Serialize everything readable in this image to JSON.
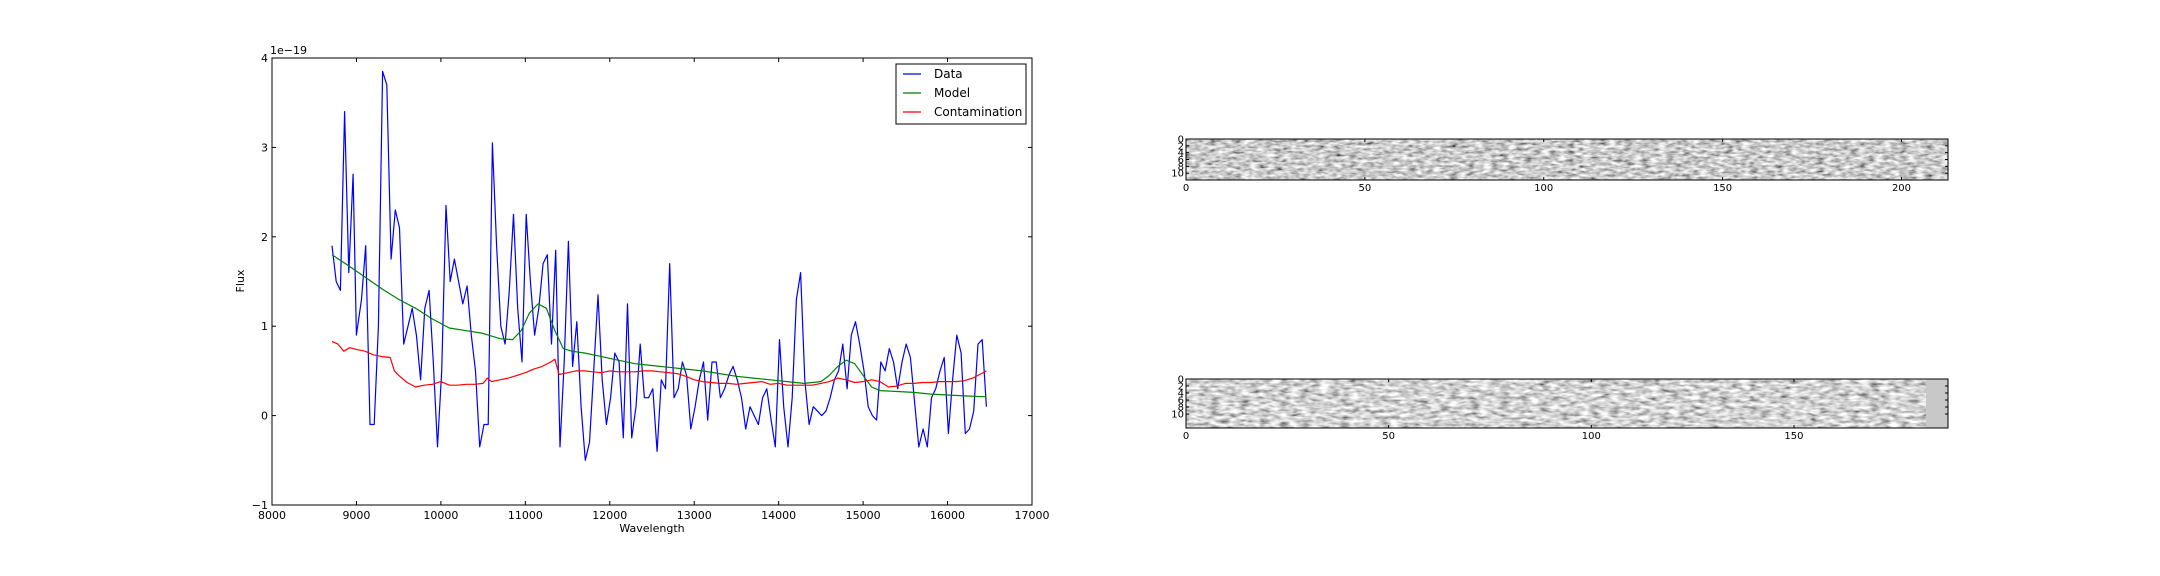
{
  "chart_data": [
    {
      "type": "line",
      "xlabel": "Wavelength",
      "ylabel": "Flux",
      "offset_text": "1e−19",
      "xlim": [
        8000,
        17000
      ],
      "ylim": [
        -1,
        4
      ],
      "xticks": [
        8000,
        9000,
        10000,
        11000,
        12000,
        13000,
        14000,
        15000,
        16000,
        17000
      ],
      "yticks": [
        -1,
        0,
        1,
        2,
        3,
        4
      ],
      "ytick_labels": [
        "−1",
        "0",
        "1",
        "2",
        "3",
        "4"
      ],
      "legend_position": "top-right",
      "series": [
        {
          "name": "Data",
          "color": "#0000ff",
          "x": [
            8710,
            8760,
            8810,
            8860,
            8910,
            8960,
            9000,
            9060,
            9110,
            9160,
            9210,
            9260,
            9310,
            9360,
            9410,
            9460,
            9510,
            9560,
            9610,
            9660,
            9710,
            9760,
            9810,
            9860,
            9910,
            9960,
            10010,
            10060,
            10110,
            10160,
            10210,
            10260,
            10310,
            10360,
            10410,
            10460,
            10510,
            10560,
            10610,
            10660,
            10710,
            10760,
            10810,
            10860,
            10910,
            10960,
            11010,
            11060,
            11110,
            11160,
            11210,
            11260,
            11310,
            11360,
            11410,
            11460,
            11510,
            11560,
            11610,
            11660,
            11710,
            11760,
            11810,
            11860,
            11910,
            11960,
            12010,
            12060,
            12110,
            12160,
            12210,
            12260,
            12310,
            12360,
            12410,
            12460,
            12510,
            12560,
            12610,
            12660,
            12710,
            12760,
            12810,
            12860,
            12910,
            12960,
            13010,
            13060,
            13110,
            13160,
            13210,
            13260,
            13310,
            13360,
            13410,
            13460,
            13510,
            13560,
            13610,
            13660,
            13710,
            13760,
            13810,
            13860,
            13910,
            13960,
            14010,
            14060,
            14110,
            14160,
            14210,
            14260,
            14310,
            14360,
            14410,
            14460,
            14510,
            14560,
            14610,
            14660,
            14710,
            14760,
            14810,
            14860,
            14910,
            14960,
            15010,
            15060,
            15110,
            15160,
            15210,
            15260,
            15310,
            15360,
            15410,
            15460,
            15510,
            15560,
            15610,
            15660,
            15710,
            15760,
            15810,
            15860,
            15910,
            15960,
            16010,
            16060,
            16110,
            16160,
            16210,
            16260,
            16310,
            16360,
            16410,
            16460
          ],
          "y": [
            1.9,
            1.5,
            1.4,
            3.4,
            1.6,
            2.7,
            0.9,
            1.3,
            1.9,
            -0.1,
            -0.1,
            1.0,
            3.85,
            3.7,
            1.75,
            2.3,
            2.1,
            0.8,
            1.0,
            1.2,
            0.9,
            0.4,
            1.2,
            1.4,
            0.6,
            -0.35,
            0.5,
            2.35,
            1.5,
            1.75,
            1.5,
            1.25,
            1.45,
            0.9,
            0.5,
            -0.35,
            -0.1,
            -0.1,
            3.05,
            1.9,
            1.0,
            0.8,
            1.4,
            2.25,
            1.2,
            0.6,
            2.25,
            1.5,
            0.9,
            1.2,
            1.7,
            1.8,
            0.8,
            1.85,
            -0.35,
            0.6,
            1.95,
            0.55,
            1.05,
            0.1,
            -0.5,
            -0.3,
            0.5,
            1.35,
            0.4,
            -0.1,
            0.2,
            0.7,
            0.6,
            -0.25,
            1.25,
            -0.25,
            0.1,
            0.8,
            0.2,
            0.2,
            0.3,
            -0.4,
            0.4,
            0.3,
            1.7,
            0.2,
            0.3,
            0.6,
            0.45,
            -0.15,
            0.1,
            0.4,
            0.6,
            -0.05,
            0.6,
            0.6,
            0.2,
            0.3,
            0.45,
            0.55,
            0.4,
            0.2,
            -0.15,
            0.1,
            0.0,
            -0.1,
            0.2,
            0.3,
            -0.05,
            -0.35,
            0.85,
            0.1,
            -0.35,
            0.2,
            1.3,
            1.6,
            0.4,
            -0.1,
            0.1,
            0.05,
            0.0,
            0.05,
            0.2,
            0.4,
            0.5,
            0.8,
            0.3,
            0.9,
            1.05,
            0.8,
            0.5,
            0.1,
            0.0,
            -0.05,
            0.6,
            0.5,
            0.75,
            0.6,
            0.3,
            0.6,
            0.8,
            0.65,
            0.15,
            -0.35,
            -0.15,
            -0.35,
            0.2,
            0.3,
            0.5,
            0.65,
            -0.2,
            0.4,
            0.9,
            0.7,
            -0.2,
            -0.15,
            0.05,
            0.8,
            0.85,
            0.1
          ]
        },
        {
          "name": "Model",
          "color": "#008000",
          "x": [
            8710,
            8900,
            9100,
            9300,
            9500,
            9700,
            9900,
            10100,
            10300,
            10500,
            10700,
            10850,
            10950,
            11050,
            11150,
            11250,
            11350,
            11450,
            11550,
            11700,
            11900,
            12100,
            12300,
            12500,
            12700,
            12900,
            13100,
            13300,
            13500,
            13700,
            13900,
            14100,
            14300,
            14500,
            14600,
            14700,
            14800,
            14900,
            15000,
            15100,
            15200,
            15400,
            15600,
            15800,
            16000,
            16200,
            16460
          ],
          "y": [
            1.8,
            1.68,
            1.55,
            1.42,
            1.3,
            1.2,
            1.08,
            0.98,
            0.95,
            0.92,
            0.86,
            0.85,
            0.95,
            1.15,
            1.25,
            1.2,
            0.95,
            0.75,
            0.72,
            0.7,
            0.66,
            0.62,
            0.58,
            0.56,
            0.54,
            0.52,
            0.5,
            0.47,
            0.44,
            0.42,
            0.4,
            0.38,
            0.36,
            0.38,
            0.45,
            0.55,
            0.62,
            0.58,
            0.45,
            0.32,
            0.28,
            0.27,
            0.26,
            0.24,
            0.23,
            0.22,
            0.21
          ]
        },
        {
          "name": "Contamination",
          "color": "#ff0000",
          "x": [
            8710,
            8780,
            8850,
            8920,
            9000,
            9100,
            9200,
            9300,
            9400,
            9450,
            9500,
            9600,
            9700,
            9800,
            9900,
            10000,
            10100,
            10200,
            10300,
            10400,
            10500,
            10550,
            10600,
            10700,
            10800,
            10900,
            11000,
            11100,
            11200,
            11300,
            11350,
            11400,
            11500,
            11600,
            11700,
            11800,
            11900,
            12000,
            12100,
            12200,
            12300,
            12400,
            12500,
            12600,
            12700,
            12800,
            12900,
            13000,
            13100,
            13200,
            13300,
            13400,
            13500,
            13600,
            13700,
            13800,
            13900,
            14000,
            14100,
            14200,
            14300,
            14400,
            14500,
            14600,
            14700,
            14800,
            14900,
            15000,
            15100,
            15200,
            15300,
            15400,
            15500,
            15600,
            15700,
            15800,
            15900,
            16000,
            16100,
            16200,
            16300,
            16400,
            16460
          ],
          "y": [
            0.83,
            0.8,
            0.72,
            0.76,
            0.74,
            0.72,
            0.68,
            0.66,
            0.65,
            0.5,
            0.45,
            0.37,
            0.32,
            0.34,
            0.35,
            0.38,
            0.34,
            0.34,
            0.35,
            0.35,
            0.36,
            0.42,
            0.38,
            0.4,
            0.42,
            0.45,
            0.48,
            0.52,
            0.55,
            0.6,
            0.63,
            0.46,
            0.48,
            0.5,
            0.5,
            0.49,
            0.48,
            0.5,
            0.49,
            0.49,
            0.49,
            0.5,
            0.5,
            0.49,
            0.48,
            0.47,
            0.44,
            0.4,
            0.38,
            0.37,
            0.36,
            0.36,
            0.35,
            0.36,
            0.37,
            0.38,
            0.35,
            0.36,
            0.34,
            0.34,
            0.34,
            0.34,
            0.36,
            0.38,
            0.42,
            0.4,
            0.37,
            0.38,
            0.4,
            0.38,
            0.32,
            0.33,
            0.36,
            0.36,
            0.37,
            0.37,
            0.38,
            0.38,
            0.38,
            0.39,
            0.42,
            0.47,
            0.5
          ]
        }
      ]
    },
    {
      "type": "heatmap",
      "colormap": "gray",
      "xlim": [
        0,
        213
      ],
      "ylim": [
        0,
        12
      ],
      "xticks": [
        0,
        50,
        100,
        150,
        200
      ],
      "yticks": [
        0,
        2,
        4,
        6,
        8,
        10
      ]
    },
    {
      "type": "heatmap",
      "colormap": "gray",
      "xlim": [
        0,
        188
      ],
      "ylim": [
        0,
        14
      ],
      "xticks": [
        0,
        50,
        100,
        150
      ],
      "yticks": [
        0,
        2,
        4,
        6,
        8,
        10
      ]
    }
  ]
}
